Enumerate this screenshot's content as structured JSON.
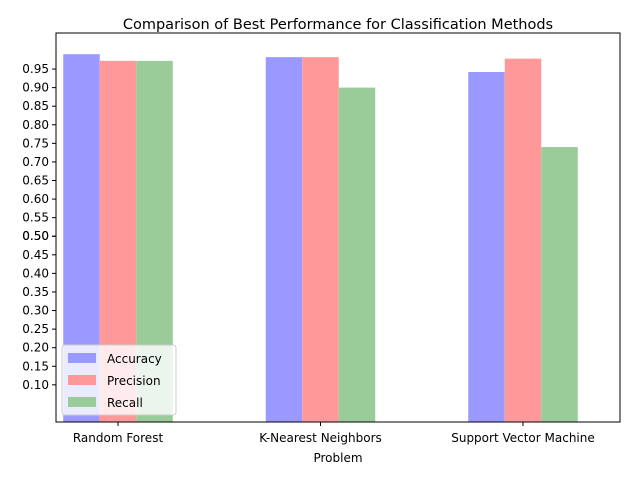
{
  "chart_data": {
    "type": "bar",
    "title": "Comparison of Best Performance for Classification Methods",
    "xlabel": "Problem",
    "ylabel": "",
    "categories": [
      "Random Forest",
      "K-Nearest Neighbors",
      "Support Vector Machine"
    ],
    "series": [
      {
        "name": "Accuracy",
        "values": [
          0.99,
          0.982,
          0.942
        ],
        "color": "#9999ff"
      },
      {
        "name": "Precision",
        "values": [
          0.972,
          0.982,
          0.978
        ],
        "color": "#ff9999"
      },
      {
        "name": "Recall",
        "values": [
          0.972,
          0.9,
          0.74
        ],
        "color": "#99cc99"
      }
    ],
    "yticks": [
      "0.10",
      "0.15",
      "0.20",
      "0.25",
      "0.30",
      "0.35",
      "0.40",
      "0.45",
      "0.50",
      "0.50",
      "0.55",
      "0.60",
      "0.65",
      "0.70",
      "0.75",
      "0.80",
      "0.85",
      "0.90",
      "0.95"
    ],
    "ytick_values": [
      0.1,
      0.15,
      0.2,
      0.25,
      0.3,
      0.35,
      0.4,
      0.45,
      0.5,
      0.5,
      0.55,
      0.6,
      0.65,
      0.7,
      0.75,
      0.8,
      0.85,
      0.9,
      0.95
    ],
    "ylim": [
      0.0,
      1.047
    ],
    "legend_placement": "lower-left",
    "grid": false
  }
}
